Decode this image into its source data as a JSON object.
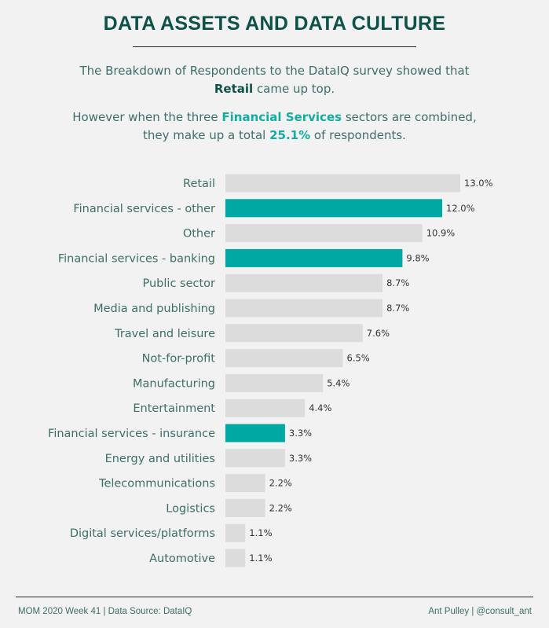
{
  "title": "DATA ASSETS AND DATA CULTURE",
  "subtitle": {
    "line1": "The Breakdown of Respondents to the DataIQ survey showed that",
    "line2_bold": "Retail",
    "line2_rest": " came up top.",
    "line3_pre": "However when the three ",
    "line3_hl": "Financial Services",
    "line3_post": " sectors are combined,",
    "line4_pre": "they make up a total ",
    "line4_hl": "25.1%",
    "line4_post": " of respondents."
  },
  "chart_data": {
    "type": "bar",
    "orientation": "horizontal",
    "categories": [
      "Retail",
      "Financial services - other",
      "Other",
      "Financial services - banking",
      "Public sector",
      "Media and publishing",
      "Travel and leisure",
      "Not-for-profit",
      "Manufacturing",
      "Entertainment",
      "Financial services - insurance",
      "Energy and utilities",
      "Telecommunications",
      "Logistics",
      "Digital services/platforms",
      "Automotive"
    ],
    "values": [
      13.0,
      12.0,
      10.9,
      9.8,
      8.7,
      8.7,
      7.6,
      6.5,
      5.4,
      4.4,
      3.3,
      3.3,
      2.2,
      2.2,
      1.1,
      1.1
    ],
    "labels": [
      "13.0%",
      "12.0%",
      "10.9%",
      "9.8%",
      "8.7%",
      "8.7%",
      "7.6%",
      "6.5%",
      "5.4%",
      "4.4%",
      "3.3%",
      "3.3%",
      "2.2%",
      "2.2%",
      "1.1%",
      "1.1%"
    ],
    "highlighted": [
      false,
      true,
      false,
      true,
      false,
      false,
      false,
      false,
      false,
      false,
      true,
      false,
      false,
      false,
      false,
      false
    ],
    "xlim": [
      0,
      13.0
    ],
    "grid": false,
    "colors": {
      "highlight": "#00a8a3",
      "default": "#dcdcdc"
    }
  },
  "footer": {
    "left": "MOM 2020 Week 41 | Data Source: DataIQ",
    "right": "Ant Pulley | @consult_ant"
  }
}
